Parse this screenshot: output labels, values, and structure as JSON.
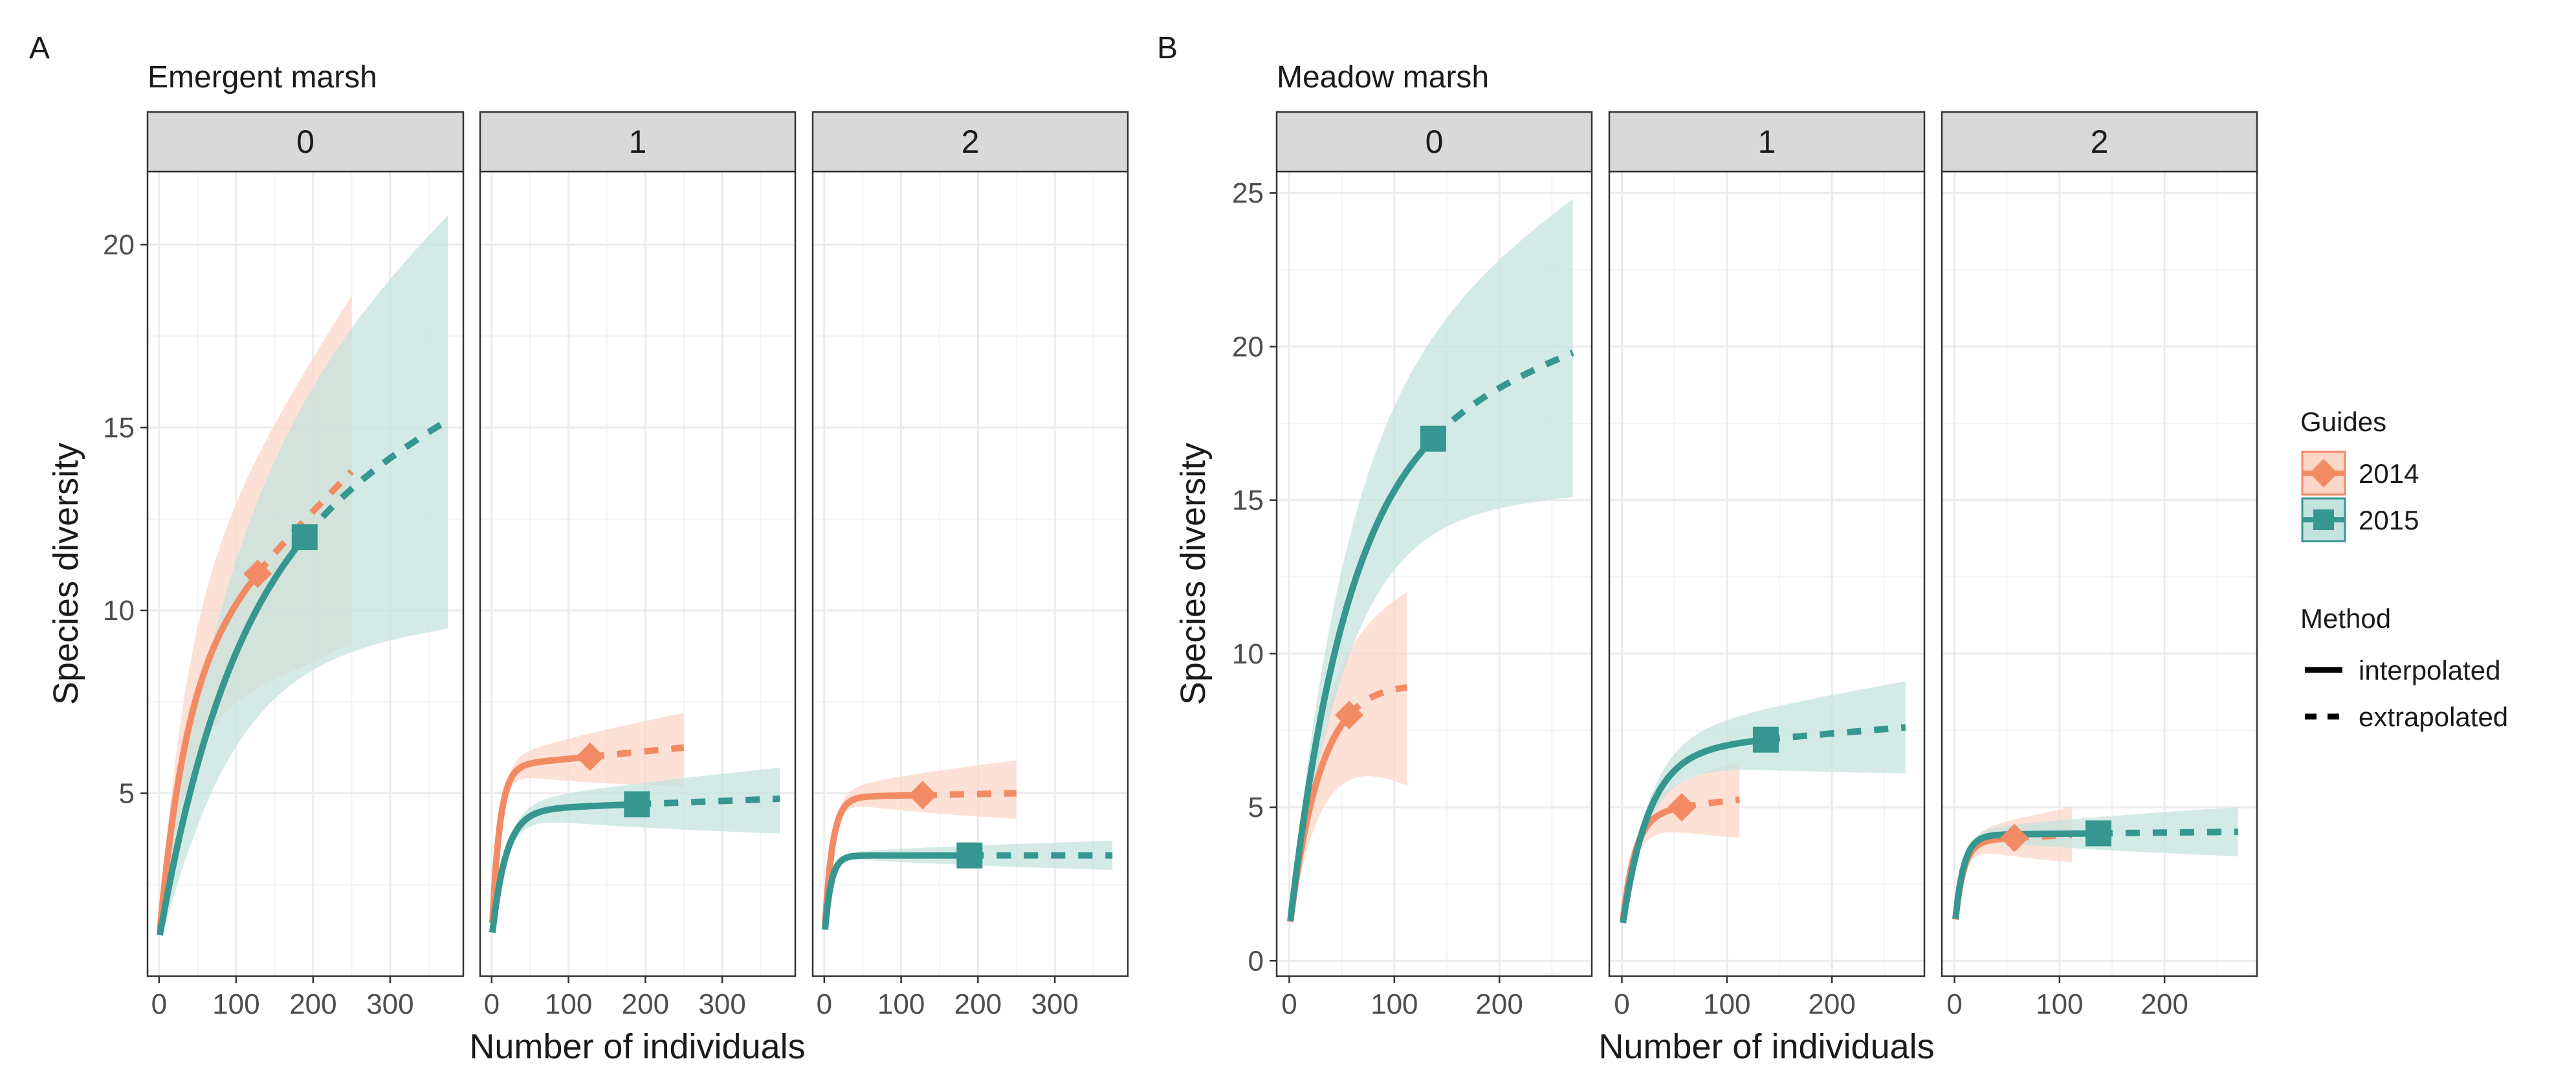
{
  "colors": {
    "y2014": "#F28B63",
    "y2015": "#35978F",
    "ribbon2014": "#FCD6C7",
    "ribbon2015": "#C4E2DE",
    "strip": "#D9D9D9",
    "grid_major": "#EBEBEB",
    "grid_minor": "#F4F4F4",
    "panel_border": "#333333"
  },
  "legend": {
    "guides_title": "Guides",
    "guides": [
      {
        "label": "2014",
        "shape": "diamond",
        "color": "#F28B63"
      },
      {
        "label": "2015",
        "shape": "square",
        "color": "#35978F"
      }
    ],
    "method_title": "Method",
    "methods": [
      {
        "label": "interpolated",
        "linetype": "solid"
      },
      {
        "label": "extrapolated",
        "linetype": "dashed"
      }
    ]
  },
  "chart_data": [
    {
      "type": "line",
      "tag": "A",
      "title": "Emergent marsh",
      "xlabel": "Number of individuals",
      "ylabel": "Species diversity",
      "xlim": [
        -15,
        395
      ],
      "ylim": [
        0,
        22
      ],
      "xticks": [
        0,
        100,
        200,
        300
      ],
      "yticks": [
        5,
        10,
        15,
        20
      ],
      "grid": true,
      "facets": [
        {
          "strip": "0",
          "series": [
            {
              "name": "2014",
              "n_obs": 128,
              "obs": 11,
              "x_max": 250,
              "end": 13.8,
              "k": 35,
              "ribbon_lower_end": 9.1,
              "ribbon_upper_end": 18.6
            },
            {
              "name": "2015",
              "n_obs": 189,
              "obs": 12,
              "x_max": 375,
              "end": 15.2,
              "k": 95,
              "ribbon_lower_end": 9.5,
              "ribbon_upper_end": 20.8
            }
          ]
        },
        {
          "strip": "1",
          "series": [
            {
              "name": "2014",
              "n_obs": 128,
              "obs": 6,
              "x_max": 250,
              "end": 6.25,
              "k": 10,
              "ribbon_lower_end": 5.2,
              "ribbon_upper_end": 7.2
            },
            {
              "name": "2015",
              "n_obs": 189,
              "obs": 4.7,
              "x_max": 375,
              "end": 4.85,
              "k": 18,
              "ribbon_lower_end": 3.9,
              "ribbon_upper_end": 5.7
            }
          ]
        },
        {
          "strip": "2",
          "series": [
            {
              "name": "2014",
              "n_obs": 128,
              "obs": 4.95,
              "x_max": 250,
              "end": 5.0,
              "k": 10,
              "ribbon_lower_end": 4.3,
              "ribbon_upper_end": 5.9
            },
            {
              "name": "2015",
              "n_obs": 189,
              "obs": 3.3,
              "x_max": 375,
              "end": 3.3,
              "k": 8,
              "ribbon_lower_end": 2.9,
              "ribbon_upper_end": 3.7
            }
          ]
        }
      ]
    },
    {
      "type": "line",
      "tag": "B",
      "title": "Meadow marsh",
      "xlabel": "Number of individuals",
      "ylabel": "Species diversity",
      "xlim": [
        -12,
        288
      ],
      "ylim": [
        -0.5,
        25.7
      ],
      "xticks": [
        0,
        100,
        200
      ],
      "yticks": [
        0,
        5,
        10,
        15,
        20,
        25
      ],
      "grid": true,
      "facets": [
        {
          "strip": "0",
          "series": [
            {
              "name": "2014",
              "n_obs": 57,
              "obs": 8,
              "x_max": 112,
              "end": 8.9,
              "k": 30,
              "ribbon_lower_end": 5.7,
              "ribbon_upper_end": 12.0
            },
            {
              "name": "2015",
              "n_obs": 137,
              "obs": 17,
              "x_max": 270,
              "end": 19.8,
              "k": 55,
              "ribbon_lower_end": 15.1,
              "ribbon_upper_end": 24.8
            }
          ]
        },
        {
          "strip": "1",
          "series": [
            {
              "name": "2014",
              "n_obs": 57,
              "obs": 5,
              "x_max": 112,
              "end": 5.25,
              "k": 12,
              "ribbon_lower_end": 4.0,
              "ribbon_upper_end": 6.5
            },
            {
              "name": "2015",
              "n_obs": 137,
              "obs": 7.2,
              "x_max": 270,
              "end": 7.6,
              "k": 25,
              "ribbon_lower_end": 6.1,
              "ribbon_upper_end": 9.1
            }
          ]
        },
        {
          "strip": "2",
          "series": [
            {
              "name": "2014",
              "n_obs": 57,
              "obs": 4.0,
              "x_max": 112,
              "end": 4.1,
              "k": 8,
              "ribbon_lower_end": 3.2,
              "ribbon_upper_end": 5.0
            },
            {
              "name": "2015",
              "n_obs": 137,
              "obs": 4.15,
              "x_max": 270,
              "end": 4.2,
              "k": 8,
              "ribbon_lower_end": 3.4,
              "ribbon_upper_end": 5.0
            }
          ]
        }
      ]
    }
  ]
}
